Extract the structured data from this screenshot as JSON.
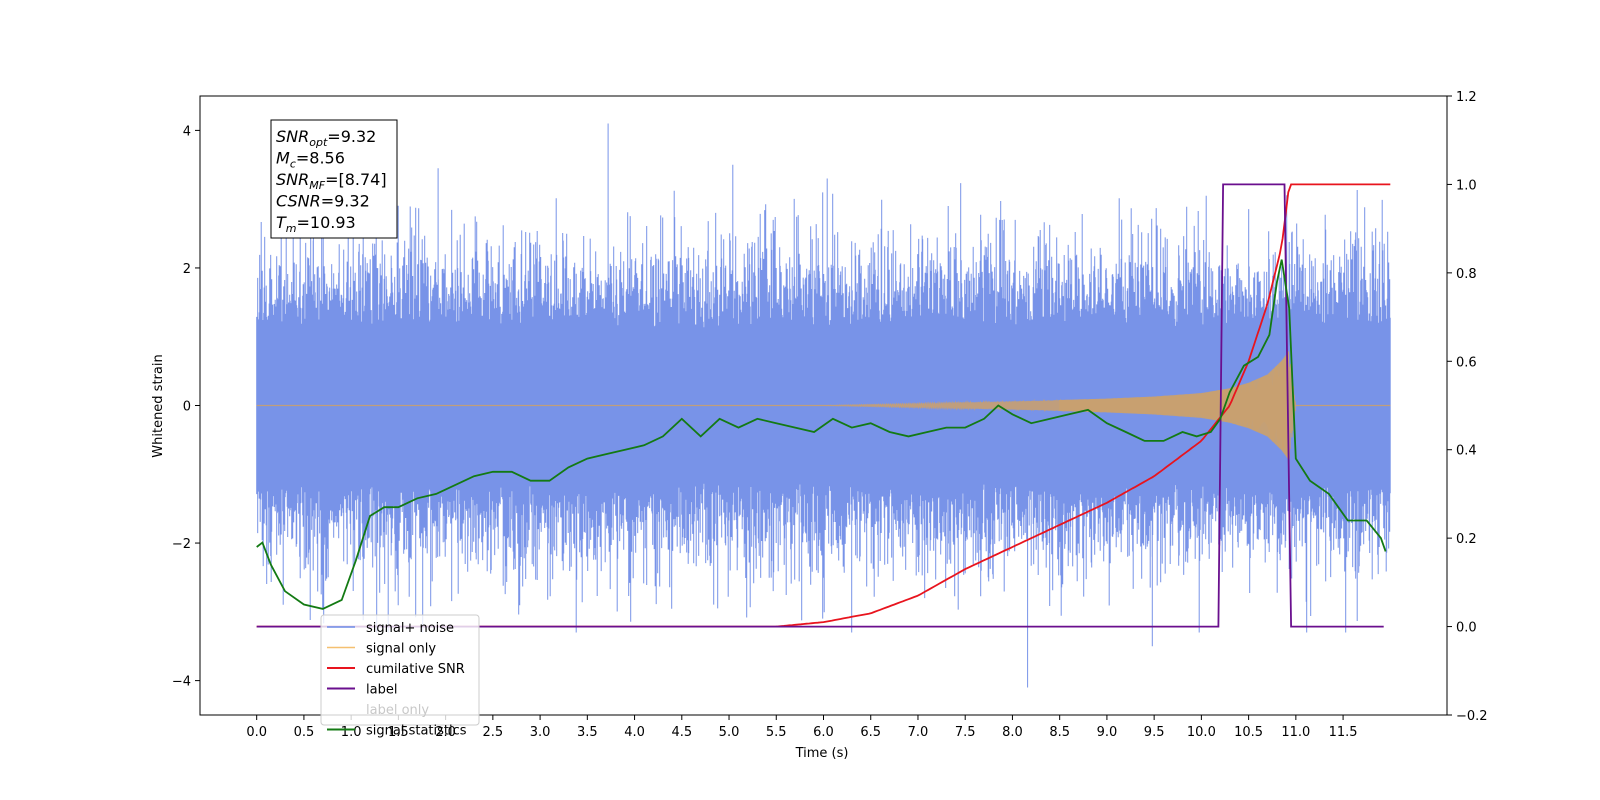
{
  "chart_data": {
    "type": "line",
    "xlabel": "Time (s)",
    "ylabel": "Whitened strain",
    "xlim": [
      -0.6,
      12.6
    ],
    "ylim": [
      -4.5,
      4.5
    ],
    "y2lim": [
      -0.2,
      1.2
    ],
    "x_ticks": [
      "0.0",
      "0.5",
      "1.0",
      "1.5",
      "2.0",
      "2.5",
      "3.0",
      "3.5",
      "4.0",
      "4.5",
      "5.0",
      "5.5",
      "6.0",
      "6.5",
      "7.0",
      "7.5",
      "8.0",
      "8.5",
      "9.0",
      "9.5",
      "10.0",
      "10.5",
      "11.0",
      "11.5"
    ],
    "y_ticks": [
      "4",
      "2",
      "0",
      "−2",
      "−4"
    ],
    "y2_ticks": [
      "1.2",
      "1.0",
      "0.8",
      "0.6",
      "0.4",
      "0.2",
      "0.0",
      "−0.2"
    ],
    "grid": false,
    "legend_position": "lower-left",
    "annotation": {
      "lines": [
        {
          "sym": "SNR",
          "sub": "opt",
          "value": "=9.32"
        },
        {
          "sym": "M",
          "sub": "c",
          "value": "=8.56"
        },
        {
          "sym": "SNR",
          "sub": "MF",
          "value": "=[8.74]"
        },
        {
          "sym": "CSNR",
          "sub": "",
          "value": "=9.32"
        },
        {
          "sym": "T",
          "sub": "m",
          "value": "=10.93"
        }
      ]
    },
    "series": [
      {
        "name": "signal+ noise",
        "color": "#6d8ae6",
        "axis": "left",
        "style": "noise band",
        "range": [
          0.0,
          12.0
        ],
        "typical_amplitude": 1.5,
        "peak_values": [
          4.1,
          -4.1,
          3.6,
          3.5,
          -3.5,
          3.45
        ]
      },
      {
        "name": "signal only",
        "color": "#f5b041",
        "axis": "left",
        "style": "chirp",
        "x": [
          0.0,
          6.0,
          7.0,
          8.0,
          9.0,
          9.5,
          10.0,
          10.3,
          10.5,
          10.7,
          10.85,
          10.93,
          11.0,
          12.0
        ],
        "envelope": [
          0.0,
          0.0,
          0.03,
          0.06,
          0.1,
          0.13,
          0.18,
          0.25,
          0.33,
          0.45,
          0.65,
          0.8,
          0.0,
          0.0
        ]
      },
      {
        "name": "cumilative SNR",
        "color": "#e8141e",
        "axis": "right",
        "x": [
          0.0,
          5.5,
          6.0,
          6.5,
          7.0,
          7.5,
          8.0,
          8.5,
          9.0,
          9.5,
          10.0,
          10.3,
          10.5,
          10.7,
          10.85,
          10.93,
          10.95,
          12.0
        ],
        "values": [
          0.0,
          0.0,
          0.01,
          0.03,
          0.07,
          0.13,
          0.18,
          0.23,
          0.28,
          0.34,
          0.42,
          0.5,
          0.6,
          0.73,
          0.86,
          1.0,
          1.0,
          1.0
        ]
      },
      {
        "name": "label",
        "color": "#6a0f8e",
        "axis": "right",
        "x": [
          0.0,
          10.18,
          10.23,
          10.88,
          10.95,
          11.93
        ],
        "values": [
          0.0,
          0.0,
          1.0,
          1.0,
          0.0,
          0.0
        ]
      },
      {
        "name": "label only",
        "color": "#bbbbbb",
        "axis": "right",
        "x": [],
        "values": []
      },
      {
        "name": "signal statistics",
        "color": "#137a13",
        "axis": "right",
        "x": [
          0.0,
          0.06,
          0.15,
          0.3,
          0.5,
          0.7,
          0.9,
          1.05,
          1.2,
          1.35,
          1.5,
          1.7,
          1.9,
          2.1,
          2.3,
          2.5,
          2.7,
          2.9,
          3.1,
          3.3,
          3.5,
          3.7,
          3.9,
          4.1,
          4.3,
          4.5,
          4.7,
          4.9,
          5.1,
          5.3,
          5.5,
          5.7,
          5.9,
          6.1,
          6.3,
          6.5,
          6.7,
          6.9,
          7.1,
          7.3,
          7.5,
          7.7,
          7.85,
          8.0,
          8.2,
          8.4,
          8.6,
          8.8,
          9.0,
          9.2,
          9.4,
          9.6,
          9.8,
          9.95,
          10.1,
          10.2,
          10.3,
          10.45,
          10.6,
          10.72,
          10.8,
          10.85,
          10.93,
          11.0,
          11.15,
          11.35,
          11.55,
          11.75,
          11.9,
          11.95
        ],
        "values": [
          0.18,
          0.19,
          0.14,
          0.08,
          0.05,
          0.04,
          0.06,
          0.15,
          0.25,
          0.27,
          0.27,
          0.29,
          0.3,
          0.32,
          0.34,
          0.35,
          0.35,
          0.33,
          0.33,
          0.36,
          0.38,
          0.39,
          0.4,
          0.41,
          0.43,
          0.47,
          0.43,
          0.47,
          0.45,
          0.47,
          0.46,
          0.45,
          0.44,
          0.47,
          0.45,
          0.46,
          0.44,
          0.43,
          0.44,
          0.45,
          0.45,
          0.47,
          0.5,
          0.48,
          0.46,
          0.47,
          0.48,
          0.49,
          0.46,
          0.44,
          0.42,
          0.42,
          0.44,
          0.43,
          0.44,
          0.47,
          0.53,
          0.59,
          0.61,
          0.66,
          0.78,
          0.83,
          0.72,
          0.38,
          0.33,
          0.3,
          0.24,
          0.24,
          0.2,
          0.17
        ]
      }
    ]
  }
}
